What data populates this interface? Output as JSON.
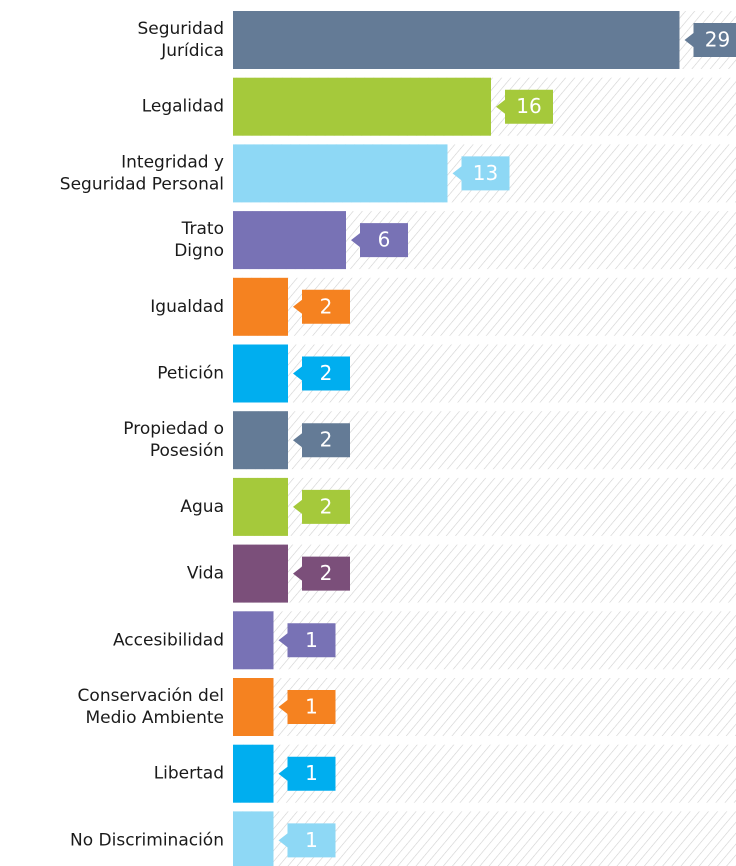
{
  "chart_data": {
    "type": "bar",
    "orientation": "horizontal",
    "categories": [
      [
        "Seguridad",
        "Jurídica"
      ],
      [
        "Legalidad"
      ],
      [
        "Integridad y",
        "Seguridad Personal"
      ],
      [
        "Trato",
        "Digno"
      ],
      [
        "Igualdad"
      ],
      [
        "Petición"
      ],
      [
        "Propiedad o",
        "Posesión"
      ],
      [
        "Agua"
      ],
      [
        "Vida"
      ],
      [
        "Accesibilidad"
      ],
      [
        "Conservación del",
        "Medio Ambiente"
      ],
      [
        "Libertad"
      ],
      [
        "No Discriminación"
      ]
    ],
    "values": [
      29,
      16,
      13,
      6,
      2,
      2,
      2,
      2,
      2,
      1,
      1,
      1,
      1
    ],
    "colors": [
      "#647b96",
      "#a5c93b",
      "#8ed8f5",
      "#7872b5",
      "#f58220",
      "#00aeef",
      "#647b96",
      "#a5c93b",
      "#7b4f7a",
      "#7872b5",
      "#f58220",
      "#00aeef",
      "#8ed8f5"
    ]
  }
}
